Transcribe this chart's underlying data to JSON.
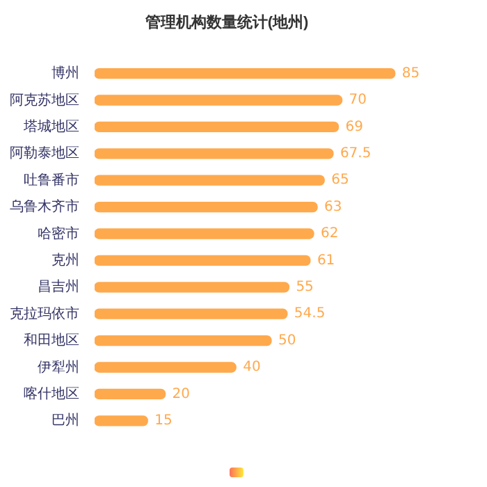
{
  "chart_data": {
    "type": "bar",
    "orientation": "horizontal",
    "title": "管理机构数量统计(地州)",
    "categories": [
      "博州",
      "阿克苏地区",
      "塔城地区",
      "阿勒泰地区",
      "吐鲁番市",
      "乌鲁木齐市",
      "哈密市",
      "克州",
      "昌吉州",
      "克拉玛依市",
      "和田地区",
      "伊犁州",
      "喀什地区",
      "巴州"
    ],
    "series": [
      {
        "color": "#ffa94d",
        "values": [
          85,
          70,
          69,
          67.5,
          65,
          63,
          62,
          61,
          55,
          54.5,
          50,
          40,
          20,
          15
        ]
      }
    ],
    "data_labels": true,
    "relative": false,
    "grid": false
  }
}
